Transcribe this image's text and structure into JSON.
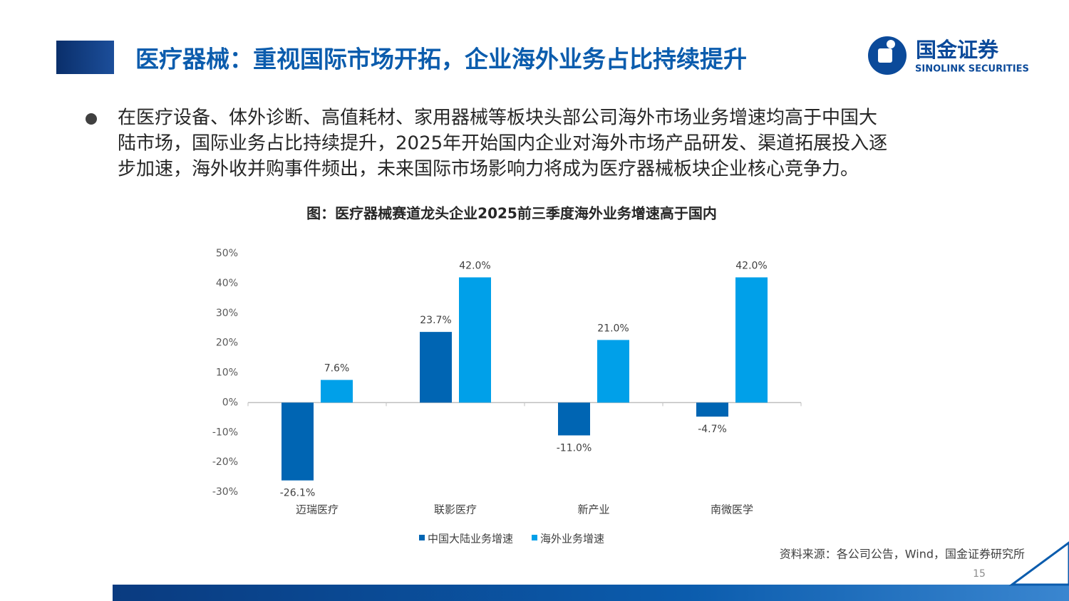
{
  "header": {
    "title": "医疗器械：重视国际市场开拓，企业海外业务占比持续提升",
    "logo_cn": "国金证券",
    "logo_en": "SINOLINK SECURITIES"
  },
  "bullet": {
    "lines": [
      "在医疗设备、体外诊断、高值耗材、家用器械等板块头部公司海外市场业务增速均高于中国大",
      "陆市场，国际业务占比持续提升，2025年开始国内企业对海外市场产品研发、渠道拓展投入逐",
      "步加速，海外收并购事件频出，未来国际市场影响力将成为医疗器械板块企业核心竞争力。"
    ]
  },
  "chart_data": {
    "type": "bar",
    "title": "图：医疗器械赛道龙头企业2025前三季度海外业务增速高于国内",
    "categories": [
      "迈瑞医疗",
      "联影医疗",
      "新产业",
      "南微医学"
    ],
    "series": [
      {
        "name": "中国大陆业务增速",
        "color": "#0065b3",
        "values": [
          -26.1,
          23.7,
          -11.0,
          -4.7
        ],
        "value_labels": [
          "-26.1%",
          "23.7%",
          "-11.0%",
          "-4.7%"
        ]
      },
      {
        "name": "海外业务增速",
        "color": "#00a0e9",
        "values": [
          7.6,
          42.0,
          21.0,
          42.0
        ],
        "value_labels": [
          "7.6%",
          "42.0%",
          "21.0%",
          "42.0%"
        ]
      }
    ],
    "ylim": [
      -30,
      50
    ],
    "yticks": [
      {
        "value": -30,
        "label": "-30%"
      },
      {
        "value": -20,
        "label": "-20%"
      },
      {
        "value": -10,
        "label": "-10%"
      },
      {
        "value": 0,
        "label": "0%"
      },
      {
        "value": 10,
        "label": "10%"
      },
      {
        "value": 20,
        "label": "20%"
      },
      {
        "value": 30,
        "label": "30%"
      },
      {
        "value": 40,
        "label": "40%"
      },
      {
        "value": 50,
        "label": "50%"
      }
    ],
    "grid": false,
    "legend": "bottom"
  },
  "source": "资料来源：各公司公告，Wind，国金证券研究所",
  "page_number": "15"
}
